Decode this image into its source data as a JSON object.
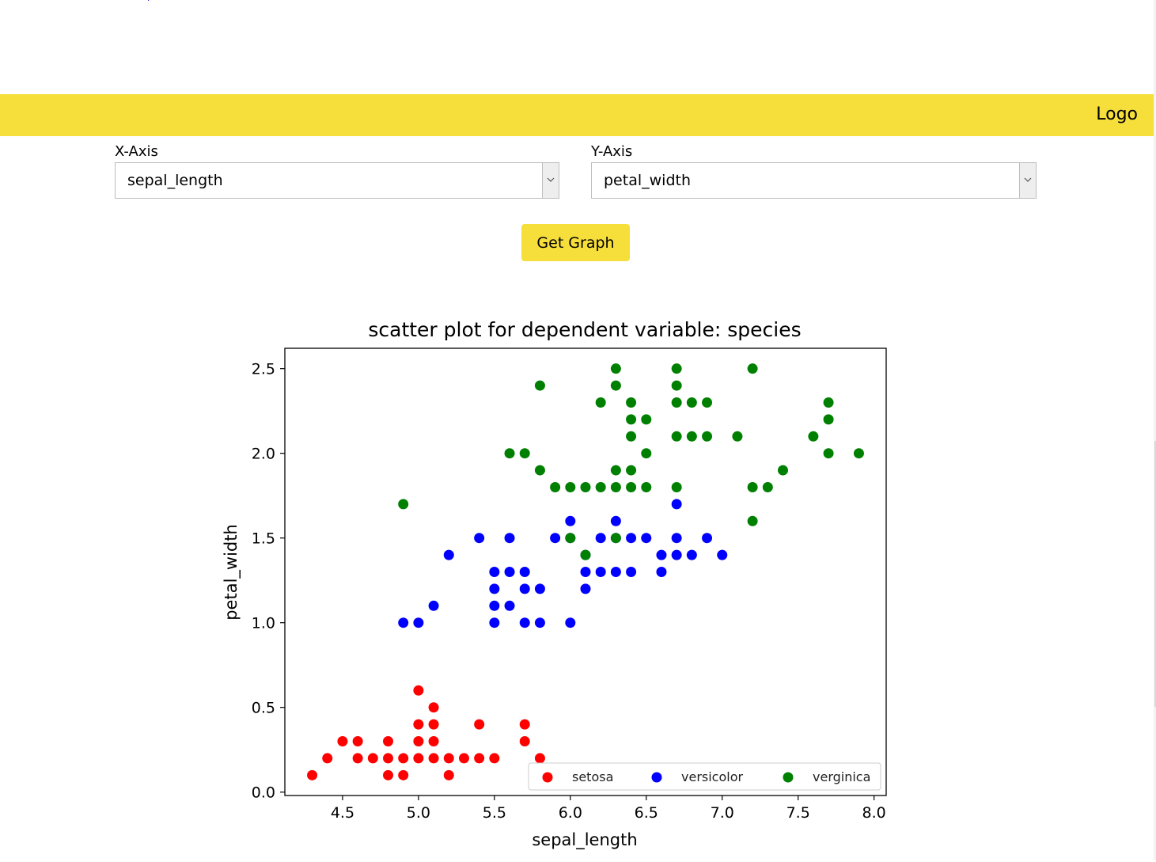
{
  "navbar": {
    "logo": "Logo",
    "color": "#f7df3b"
  },
  "form": {
    "x_axis": {
      "label": "X-Axis",
      "value": "sepal_length"
    },
    "y_axis": {
      "label": "Y-Axis",
      "value": "petal_width"
    },
    "submit_label": "Get Graph"
  },
  "chart_data": {
    "type": "scatter",
    "title": "scatter plot for dependent variable: species",
    "xlabel": "sepal_length",
    "ylabel": "petal_width",
    "xlim": [
      4.12,
      8.08
    ],
    "ylim": [
      -0.02,
      2.62
    ],
    "xticks": [
      "4.5",
      "5.0",
      "5.5",
      "6.0",
      "6.5",
      "7.0",
      "7.5",
      "8.0"
    ],
    "yticks": [
      "0.0",
      "0.5",
      "1.0",
      "1.5",
      "2.0",
      "2.5"
    ],
    "legend_position": "lower-right",
    "series": [
      {
        "name": "setosa",
        "color": "#ff0000",
        "points": [
          [
            4.3,
            0.1
          ],
          [
            4.4,
            0.2
          ],
          [
            4.5,
            0.3
          ],
          [
            4.6,
            0.3
          ],
          [
            4.6,
            0.2
          ],
          [
            4.7,
            0.2
          ],
          [
            4.8,
            0.1
          ],
          [
            4.8,
            0.2
          ],
          [
            4.8,
            0.3
          ],
          [
            4.9,
            0.1
          ],
          [
            4.9,
            0.2
          ],
          [
            5.0,
            0.2
          ],
          [
            5.0,
            0.3
          ],
          [
            5.0,
            0.4
          ],
          [
            5.0,
            0.6
          ],
          [
            5.1,
            0.2
          ],
          [
            5.1,
            0.3
          ],
          [
            5.1,
            0.4
          ],
          [
            5.1,
            0.5
          ],
          [
            5.2,
            0.1
          ],
          [
            5.2,
            0.2
          ],
          [
            5.3,
            0.2
          ],
          [
            5.4,
            0.2
          ],
          [
            5.4,
            0.4
          ],
          [
            5.5,
            0.2
          ],
          [
            5.7,
            0.3
          ],
          [
            5.7,
            0.4
          ],
          [
            5.8,
            0.2
          ]
        ]
      },
      {
        "name": "versicolor",
        "color": "#0000ff",
        "points": [
          [
            4.9,
            1.0
          ],
          [
            5.0,
            1.0
          ],
          [
            5.1,
            1.1
          ],
          [
            5.2,
            1.4
          ],
          [
            5.4,
            1.5
          ],
          [
            5.5,
            1.0
          ],
          [
            5.5,
            1.1
          ],
          [
            5.5,
            1.2
          ],
          [
            5.5,
            1.3
          ],
          [
            5.6,
            1.1
          ],
          [
            5.6,
            1.3
          ],
          [
            5.6,
            1.5
          ],
          [
            5.7,
            1.0
          ],
          [
            5.7,
            1.2
          ],
          [
            5.7,
            1.3
          ],
          [
            5.8,
            1.0
          ],
          [
            5.8,
            1.2
          ],
          [
            5.9,
            1.5
          ],
          [
            6.0,
            1.0
          ],
          [
            6.0,
            1.5
          ],
          [
            6.0,
            1.6
          ],
          [
            6.1,
            1.2
          ],
          [
            6.1,
            1.3
          ],
          [
            6.1,
            1.4
          ],
          [
            6.2,
            1.3
          ],
          [
            6.2,
            1.5
          ],
          [
            6.3,
            1.3
          ],
          [
            6.3,
            1.5
          ],
          [
            6.3,
            1.6
          ],
          [
            6.4,
            1.3
          ],
          [
            6.4,
            1.5
          ],
          [
            6.5,
            1.5
          ],
          [
            6.6,
            1.3
          ],
          [
            6.6,
            1.4
          ],
          [
            6.7,
            1.4
          ],
          [
            6.7,
            1.5
          ],
          [
            6.7,
            1.7
          ],
          [
            6.8,
            1.4
          ],
          [
            6.9,
            1.5
          ],
          [
            7.0,
            1.4
          ]
        ]
      },
      {
        "name": "verginica",
        "color": "#008000",
        "points": [
          [
            4.9,
            1.7
          ],
          [
            5.6,
            2.0
          ],
          [
            5.7,
            2.0
          ],
          [
            5.8,
            1.9
          ],
          [
            5.8,
            2.4
          ],
          [
            5.9,
            1.8
          ],
          [
            6.0,
            1.8
          ],
          [
            6.0,
            1.5
          ],
          [
            6.1,
            1.8
          ],
          [
            6.1,
            1.4
          ],
          [
            6.2,
            1.8
          ],
          [
            6.2,
            2.3
          ],
          [
            6.3,
            1.5
          ],
          [
            6.3,
            1.8
          ],
          [
            6.3,
            1.9
          ],
          [
            6.3,
            2.4
          ],
          [
            6.3,
            2.5
          ],
          [
            6.4,
            1.8
          ],
          [
            6.4,
            1.9
          ],
          [
            6.4,
            2.1
          ],
          [
            6.4,
            2.2
          ],
          [
            6.4,
            2.3
          ],
          [
            6.5,
            1.8
          ],
          [
            6.5,
            2.0
          ],
          [
            6.5,
            2.2
          ],
          [
            6.7,
            1.8
          ],
          [
            6.7,
            2.1
          ],
          [
            6.7,
            2.3
          ],
          [
            6.7,
            2.4
          ],
          [
            6.7,
            2.5
          ],
          [
            6.8,
            2.1
          ],
          [
            6.8,
            2.3
          ],
          [
            6.9,
            2.1
          ],
          [
            6.9,
            2.3
          ],
          [
            7.1,
            2.1
          ],
          [
            7.2,
            1.6
          ],
          [
            7.2,
            1.8
          ],
          [
            7.2,
            2.5
          ],
          [
            7.3,
            1.8
          ],
          [
            7.4,
            1.9
          ],
          [
            7.6,
            2.1
          ],
          [
            7.7,
            2.0
          ],
          [
            7.7,
            2.2
          ],
          [
            7.7,
            2.3
          ],
          [
            7.9,
            2.0
          ]
        ]
      }
    ]
  }
}
